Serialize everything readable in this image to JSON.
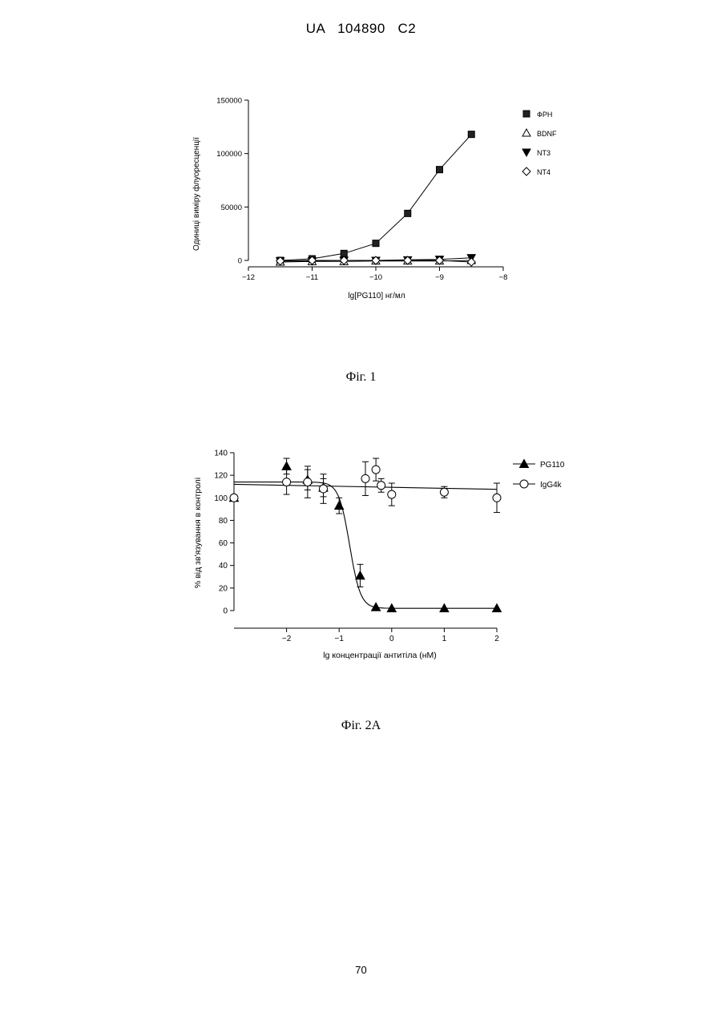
{
  "header": {
    "doc_id": "UA   104890   C2"
  },
  "page_number": "70",
  "chart_data": [
    {
      "type": "line",
      "caption": "Фіг. 1",
      "xlabel": "lg[PG110] нг/мл",
      "ylabel": "Одиниці виміру флуоресценції",
      "xlim": [
        -12,
        -8
      ],
      "ylim": [
        0,
        150000
      ],
      "x_ticks": [
        "−12",
        "−11",
        "−10",
        "−9",
        "−8"
      ],
      "y_ticks": [
        "0",
        "50000",
        "100000",
        "150000"
      ],
      "x_tick_values": [
        -12,
        -11,
        -10,
        -9,
        -8
      ],
      "y_tick_values": [
        0,
        50000,
        100000,
        150000
      ],
      "legend_position": "right",
      "series": [
        {
          "name": "ФРН",
          "marker": "square-filled",
          "x": [
            -11.5,
            -11.0,
            -10.5,
            -10.0,
            -9.5,
            -9.0,
            -8.5
          ],
          "y": [
            0,
            1500,
            6500,
            16000,
            44000,
            85000,
            118000
          ]
        },
        {
          "name": "BDNF",
          "marker": "triangle-up-open",
          "x": [
            -11.5,
            -11.0,
            -10.5,
            -10.0,
            -9.5,
            -9.0,
            -8.5
          ],
          "y": [
            -1500,
            -1000,
            -1000,
            -500,
            -500,
            -500,
            0
          ]
        },
        {
          "name": "NT3",
          "marker": "triangle-down-filled",
          "x": [
            -11.5,
            -11.0,
            -10.5,
            -10.0,
            -9.5,
            -9.0,
            -8.5
          ],
          "y": [
            -500,
            -500,
            0,
            0,
            500,
            1000,
            2500
          ]
        },
        {
          "name": "NT4",
          "marker": "diamond-open",
          "x": [
            -11.5,
            -11.0,
            -10.5,
            -10.0,
            -9.5,
            -9.0,
            -8.5
          ],
          "y": [
            -500,
            0,
            0,
            0,
            0,
            0,
            -1500
          ]
        }
      ]
    },
    {
      "type": "scatter",
      "caption": "Фіг. 2А",
      "xlabel": "lg концентрації антитіла (нМ)",
      "ylabel": "% від зв'язування в контролі",
      "xlim": [
        -3,
        2
      ],
      "ylim": [
        0,
        140
      ],
      "x_ticks": [
        "−2",
        "−1",
        "0",
        "1",
        "2"
      ],
      "y_ticks": [
        "0",
        "20",
        "40",
        "60",
        "80",
        "100",
        "120",
        "140"
      ],
      "x_tick_values": [
        -2,
        -1,
        0,
        1,
        2
      ],
      "y_tick_values": [
        0,
        20,
        40,
        60,
        80,
        100,
        120,
        140
      ],
      "legend_position": "top-right",
      "series": [
        {
          "name": "PG110",
          "marker": "triangle-up-filled",
          "x": [
            -3.0,
            -2.0,
            -1.6,
            -1.3,
            -1.0,
            -0.6,
            -0.3,
            0.0,
            1.0,
            2.0
          ],
          "y": [
            100,
            128,
            116,
            109,
            93,
            31,
            3,
            2,
            2,
            2
          ],
          "error": [
            0,
            7,
            9,
            8,
            7,
            10,
            0,
            0,
            0,
            0
          ]
        },
        {
          "name": "IgG4k",
          "marker": "circle-open",
          "x": [
            -3.0,
            -2.0,
            -1.6,
            -1.3,
            -0.5,
            -0.3,
            -0.2,
            0.0,
            1.0,
            2.0
          ],
          "y": [
            100,
            114,
            114,
            108,
            117,
            125,
            111,
            103,
            105,
            100
          ],
          "error": [
            0,
            11,
            14,
            13,
            15,
            10,
            6,
            10,
            5,
            13
          ]
        }
      ]
    }
  ]
}
